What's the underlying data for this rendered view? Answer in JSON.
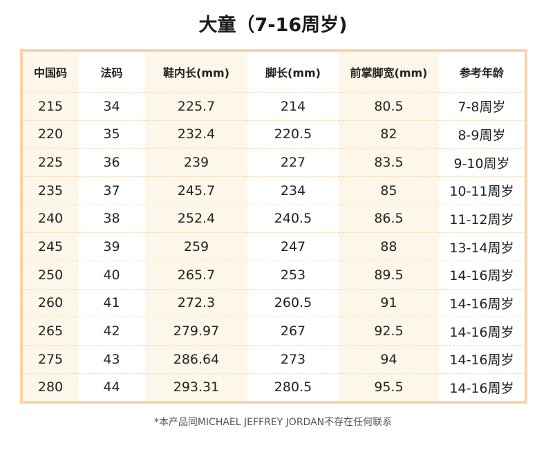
{
  "title": "大童（7-16周岁)",
  "table": {
    "headers": [
      "中国码",
      "法码",
      "鞋内长(mm)",
      "脚长(mm)",
      "前掌脚宽(mm)",
      "参考年龄"
    ],
    "rows": [
      [
        "215",
        "34",
        "225.7",
        "214",
        "80.5",
        "7-8周岁"
      ],
      [
        "220",
        "35",
        "232.4",
        "220.5",
        "82",
        "8-9周岁"
      ],
      [
        "225",
        "36",
        "239",
        "227",
        "83.5",
        "9-10周岁"
      ],
      [
        "235",
        "37",
        "245.7",
        "234",
        "85",
        "10-11周岁"
      ],
      [
        "240",
        "38",
        "252.4",
        "240.5",
        "86.5",
        "11-12周岁"
      ],
      [
        "245",
        "39",
        "259",
        "247",
        "88",
        "13-14周岁"
      ],
      [
        "250",
        "40",
        "265.7",
        "253",
        "89.5",
        "14-16周岁"
      ],
      [
        "260",
        "41",
        "272.3",
        "260.5",
        "91",
        "14-16周岁"
      ],
      [
        "265",
        "42",
        "279.97",
        "267",
        "92.5",
        "14-16周岁"
      ],
      [
        "275",
        "43",
        "286.64",
        "273",
        "94",
        "14-16周岁"
      ],
      [
        "280",
        "44",
        "293.31",
        "280.5",
        "95.5",
        "14-16周岁"
      ]
    ]
  },
  "note": "*本产品同MICHAEL JEFFREY JORDAN不存在任何联系",
  "colors": {
    "border": "#fad3a8",
    "shade": "#fdf7ea"
  }
}
